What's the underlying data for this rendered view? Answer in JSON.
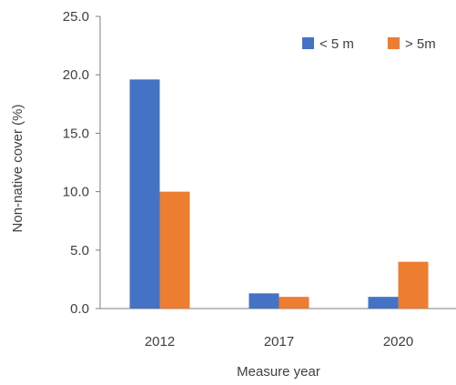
{
  "chart_data": {
    "type": "bar",
    "categories": [
      "2012",
      "2017",
      "2020"
    ],
    "series": [
      {
        "name": "< 5 m",
        "values": [
          19.6,
          1.3,
          1.0
        ],
        "color": "#4472C4"
      },
      {
        "name": "> 5m",
        "values": [
          10.0,
          1.0,
          4.0
        ],
        "color": "#ED7D31"
      }
    ],
    "xlabel": "Measure year",
    "ylabel": "Non-native cover (%)",
    "ylim": [
      0,
      25
    ],
    "yticks": [
      "0.0",
      "5.0",
      "10.0",
      "15.0",
      "20.0",
      "25.0"
    ],
    "grid": false,
    "legend": "top-right"
  }
}
